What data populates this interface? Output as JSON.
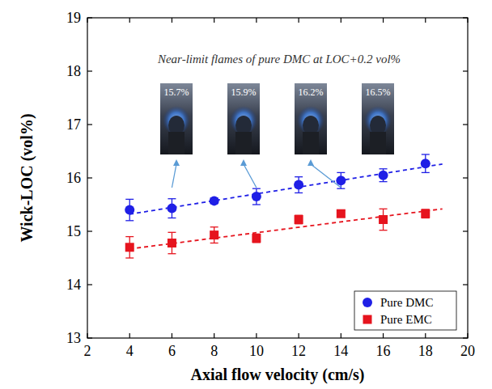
{
  "chart_data": {
    "type": "scatter",
    "x_label": "Axial flow velocity (cm/s)",
    "y_label": "Wick-LOC (vol%)",
    "annotation": "Near-limit flames of pure DMC at LOC+0.2 vol%",
    "x": [
      4,
      6,
      8,
      10,
      12,
      14,
      16,
      18
    ],
    "series": [
      {
        "name": "Pure DMC",
        "color": "#1f1fe6",
        "marker": "circle",
        "values": [
          15.4,
          15.43,
          15.57,
          15.65,
          15.87,
          15.95,
          16.05,
          16.27
        ],
        "errors": [
          0.2,
          0.18,
          0.05,
          0.15,
          0.15,
          0.15,
          0.12,
          0.17
        ],
        "trend": {
          "x": [
            4,
            18.8
          ],
          "values": [
            15.32,
            16.26
          ]
        }
      },
      {
        "name": "Pure EMC",
        "color": "#e6141e",
        "marker": "square",
        "values": [
          14.7,
          14.78,
          14.93,
          14.87,
          15.22,
          15.33,
          15.22,
          15.33
        ],
        "errors": [
          0.2,
          0.2,
          0.15,
          0.08,
          0.08,
          0.06,
          0.2,
          0.08
        ],
        "trend": {
          "x": [
            4,
            18.8
          ],
          "values": [
            14.67,
            15.42
          ]
        }
      }
    ],
    "insets": [
      {
        "label": "15.7%",
        "x": 6
      },
      {
        "label": "15.9%",
        "x": 10
      },
      {
        "label": "16.2%",
        "x": 14
      },
      {
        "label": "16.5%"
      }
    ],
    "xlim": [
      2,
      20
    ],
    "xticks": [
      2,
      4,
      6,
      8,
      10,
      12,
      14,
      16,
      18,
      20
    ],
    "ylim": [
      13,
      19
    ],
    "yticks": [
      13,
      14,
      15,
      16,
      17,
      18,
      19
    ],
    "legend": "lower right",
    "grid": false
  }
}
